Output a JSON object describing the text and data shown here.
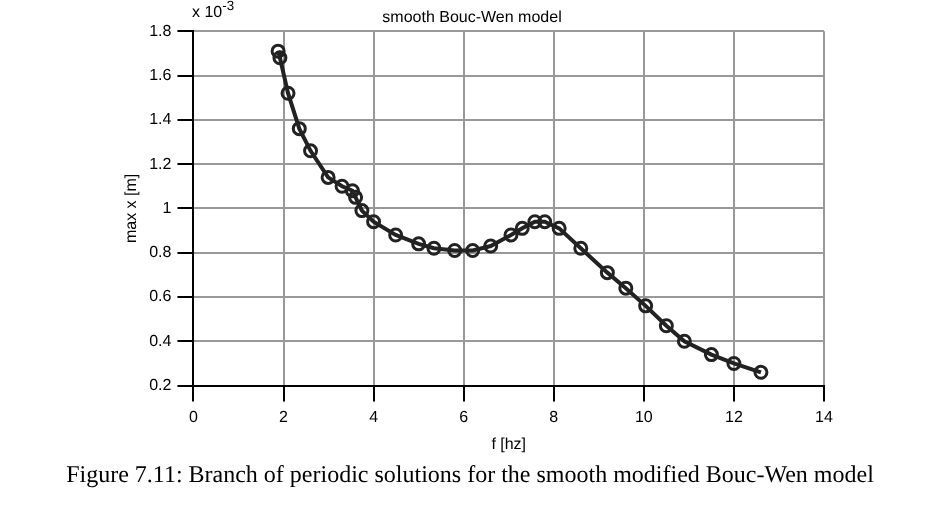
{
  "chart_data": {
    "type": "line",
    "title": "smooth Bouc-Wen model",
    "xlabel": "f [hz]",
    "ylabel": "max x [m]",
    "annotations": [
      "x 10$^{-3}$",
      "Figure 7.11: Branch of periodic solutions for the smooth modified Bouc-Wen model"
    ],
    "series": [
      {
        "color": "#222222",
        "x": [
          1.88,
          1.92,
          2.1,
          2.35,
          2.6,
          2.99,
          3.3,
          3.53,
          3.6,
          3.74,
          4.0,
          4.49,
          5.0,
          5.34,
          5.8,
          6.2,
          6.6,
          7.05,
          7.3,
          7.58,
          7.8,
          8.12,
          8.6,
          9.19,
          9.6,
          10.04,
          10.5,
          10.9,
          11.5,
          12.0,
          12.6
        ],
        "values": [
          1.71,
          1.68,
          1.52,
          1.36,
          1.26,
          1.14,
          1.1,
          1.08,
          1.05,
          0.99,
          0.94,
          0.88,
          0.84,
          0.82,
          0.81,
          0.81,
          0.83,
          0.88,
          0.91,
          0.94,
          0.94,
          0.91,
          0.82,
          0.71,
          0.64,
          0.56,
          0.47,
          0.4,
          0.34,
          0.3,
          0.26
        ]
      }
    ],
    "xlim": [
      0,
      14
    ],
    "xticks": [
      0,
      2,
      4,
      6,
      8,
      10,
      12,
      14
    ],
    "ylim": [
      0.2,
      1.8
    ],
    "yticks": [
      0.2,
      0.4,
      0.6,
      0.8,
      1,
      1.2,
      1.4,
      1.6,
      1.8
    ],
    "grid": true,
    "marker": "circle",
    "legend": false
  }
}
